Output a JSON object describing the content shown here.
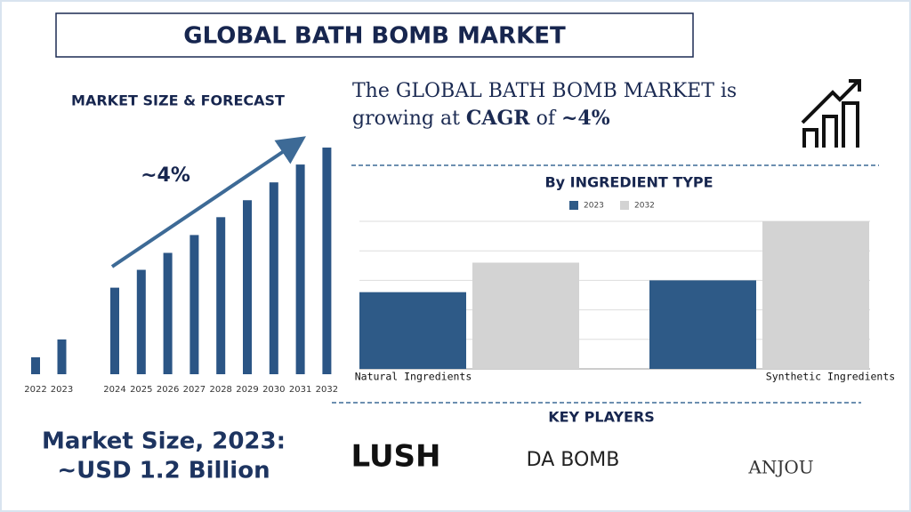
{
  "header": {
    "title": "GLOBAL BATH BOMB MARKET"
  },
  "cagr_text": {
    "line1": "The GLOBAL BATH BOMB MARKET is",
    "part1": "growing at",
    "emphasis1": "CAGR",
    "part2": "of",
    "emphasis2": "~4%"
  },
  "chart_data": [
    {
      "type": "bar",
      "title": "MARKET SIZE & FORECAST",
      "annotation": "~4%",
      "categories": [
        "2022",
        "2023",
        "2024",
        "2025",
        "2026",
        "2027",
        "2028",
        "2029",
        "2030",
        "2031",
        "2032"
      ],
      "values": [
        19,
        39,
        97,
        117,
        136,
        156,
        176,
        195,
        215,
        235,
        254
      ],
      "color": "#2b5585",
      "ylim": [
        0,
        260
      ]
    },
    {
      "type": "grouped_bar",
      "title": "By INGREDIENT TYPE",
      "categories": [
        "Natural Ingredients",
        "Synthetic Ingredients"
      ],
      "series": [
        {
          "name": "2023",
          "color": "#2e5a87",
          "values": [
            2.6,
            3.0
          ]
        },
        {
          "name": "2032",
          "color": "#d3d3d3",
          "values": [
            3.6,
            5.0
          ]
        }
      ],
      "ylim": [
        0,
        5
      ],
      "yticks": [
        0,
        1,
        2,
        3,
        4,
        5
      ],
      "grid": true,
      "legend": "top"
    }
  ],
  "key_players": {
    "title": "KEY PLAYERS",
    "players": [
      "LUSH",
      "DA BOMB",
      "ANJOU"
    ]
  },
  "market_size": {
    "label": "Market Size, 2023:",
    "value": "~USD 1.2 Billion"
  }
}
